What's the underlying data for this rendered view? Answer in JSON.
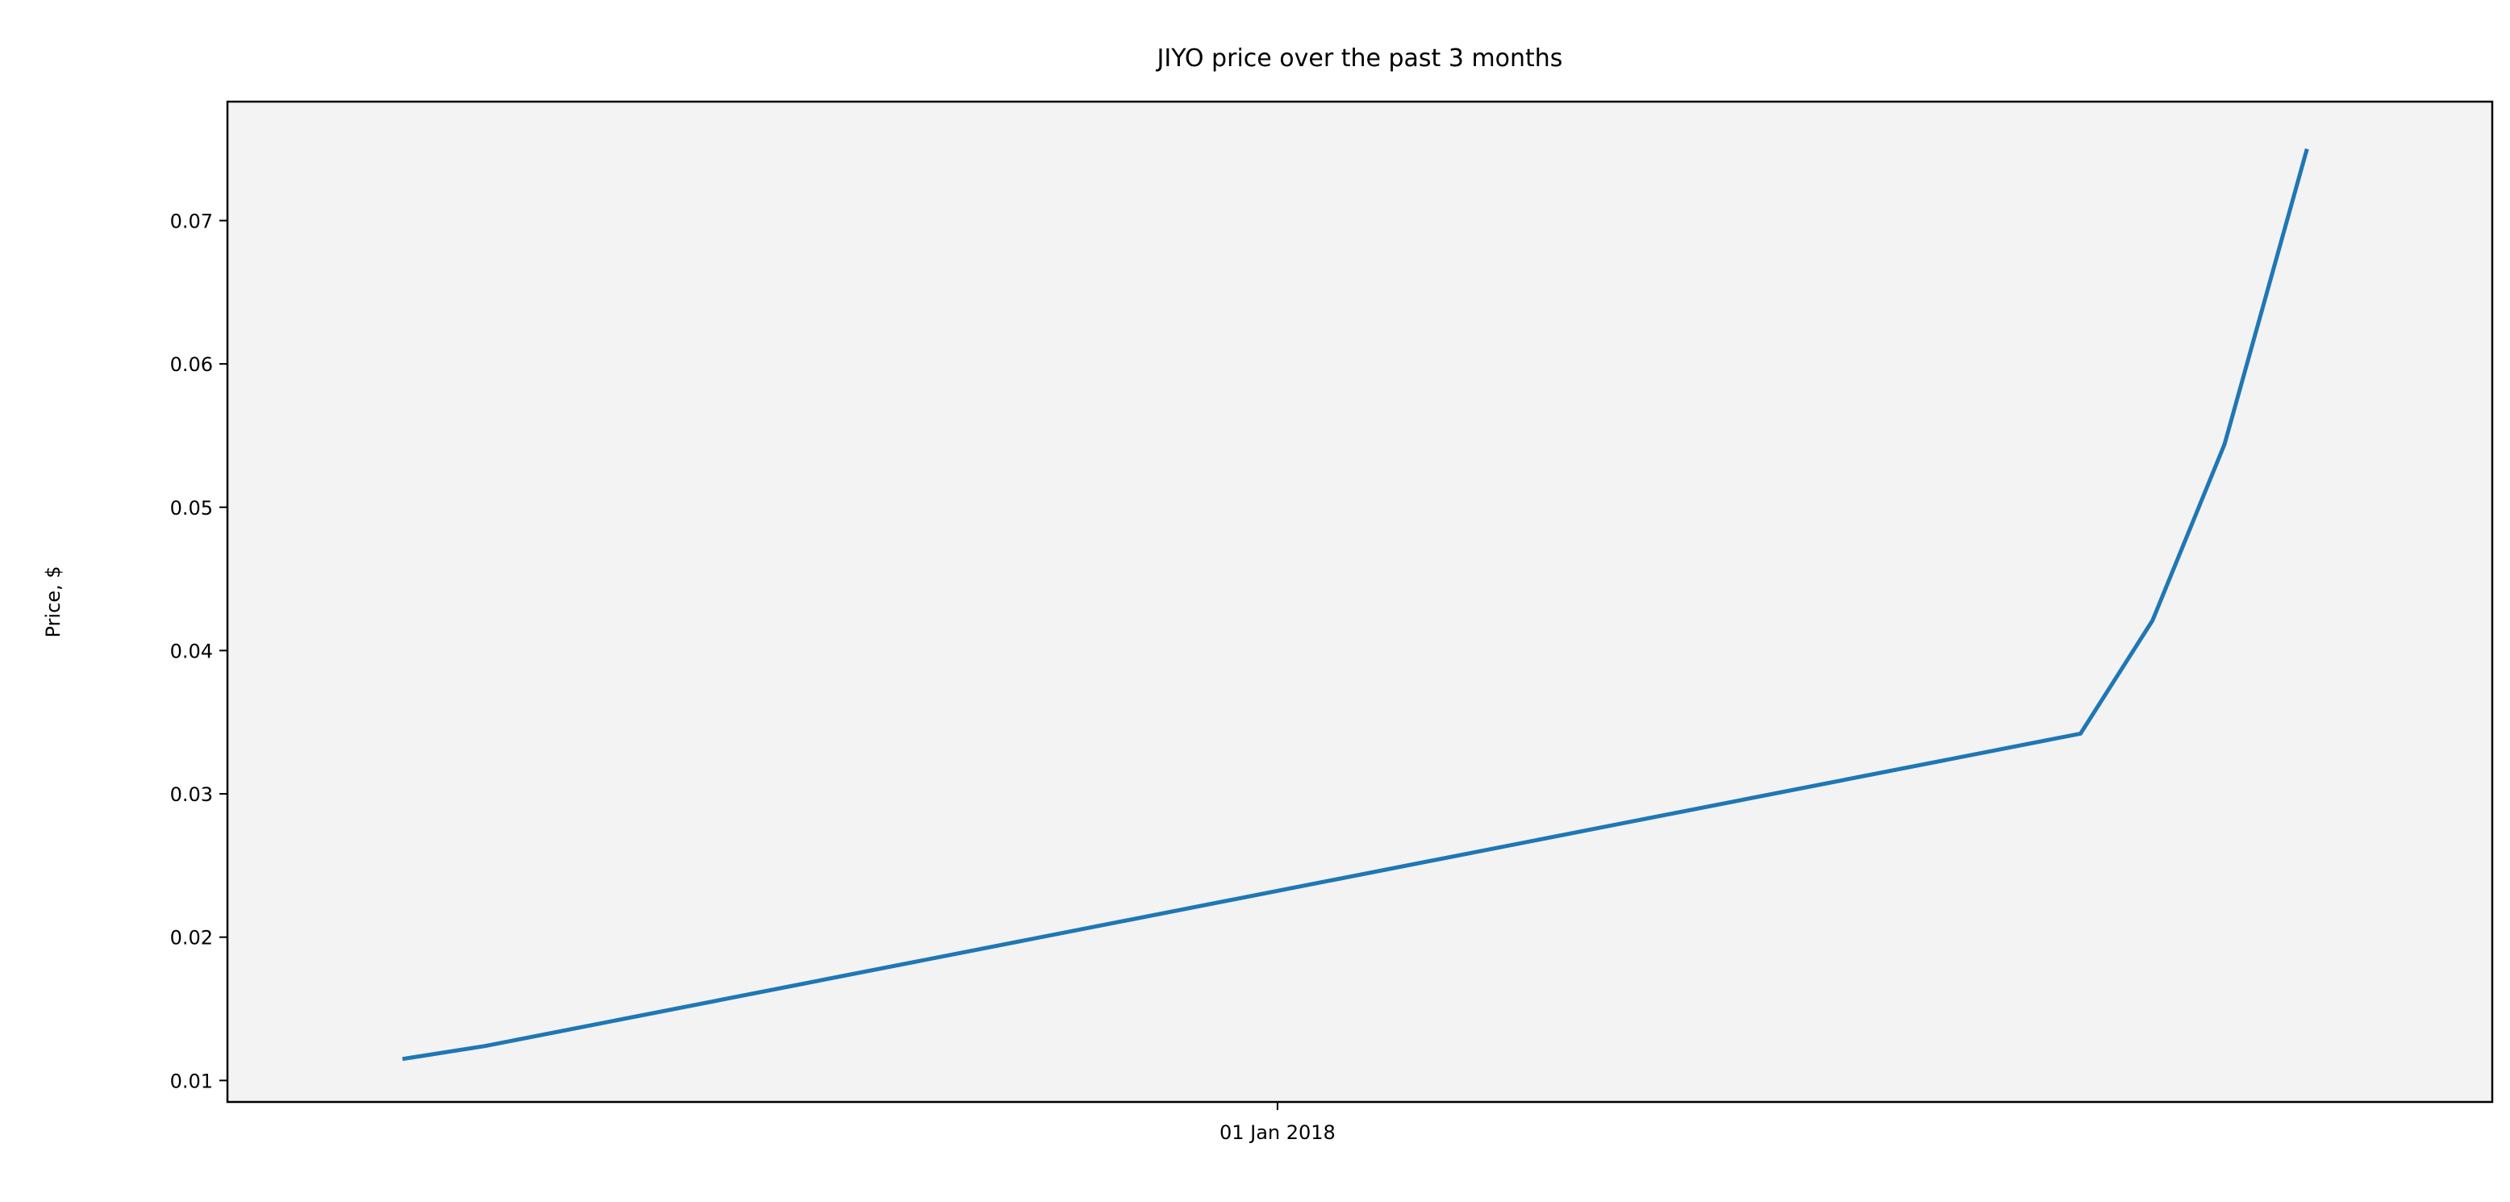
{
  "chart_data": {
    "type": "line",
    "title": "JIYO price over the past 3 months",
    "xlabel": "",
    "ylabel": "Price, $",
    "x": [
      "2017-10-08",
      "2017-10-16",
      "2018-03-20",
      "2018-03-27",
      "2018-04-03",
      "2018-04-11"
    ],
    "series": [
      {
        "values": [
          0.0115,
          0.0124,
          0.0342,
          0.0421,
          0.0544,
          0.075
        ]
      }
    ],
    "x_ticks": [
      {
        "value": "2018-01-01",
        "label": "01 Jan 2018"
      }
    ],
    "x_range": [
      "2017-09-21",
      "2018-04-29"
    ],
    "y_ticks": [
      {
        "value": 0.01,
        "label": "0.01"
      },
      {
        "value": 0.02,
        "label": "0.02"
      },
      {
        "value": 0.03,
        "label": "0.03"
      },
      {
        "value": 0.04,
        "label": "0.04"
      },
      {
        "value": 0.05,
        "label": "0.05"
      },
      {
        "value": 0.06,
        "label": "0.06"
      },
      {
        "value": 0.07,
        "label": "0.07"
      }
    ],
    "ylim": [
      0.0085,
      0.0783
    ],
    "grid": false,
    "legend": "none",
    "colors": {
      "line": "#1f77b4",
      "plot_background": "#f3f3f3",
      "axes": "#000000"
    }
  }
}
